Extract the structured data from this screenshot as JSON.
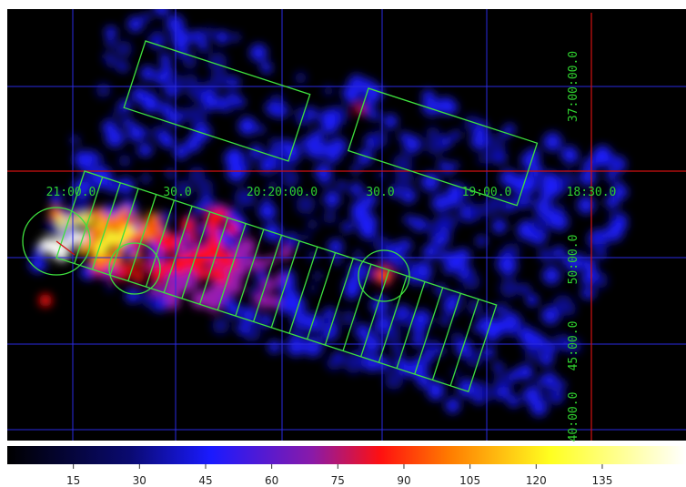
{
  "image": {
    "ra_labels": [
      "21:00.0",
      "30.0",
      "20:20:00.0",
      "30.0",
      "19:00.0",
      "18:30.0"
    ],
    "dec_labels": [
      "37:00:00.0",
      "50:00.0",
      "45:00.0",
      "40:00.0"
    ]
  },
  "colorbar": {
    "lim": [
      0,
      154
    ],
    "ticks": [
      15,
      30,
      45,
      60,
      75,
      90,
      105,
      120,
      135
    ]
  }
}
